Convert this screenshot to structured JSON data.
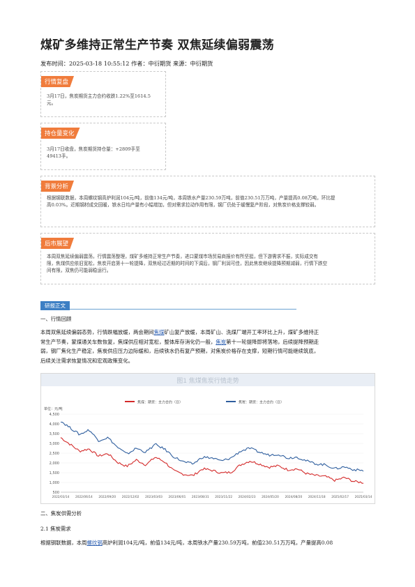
{
  "title": "煤矿多维持正常生产节奏 双焦延续偏弱震荡",
  "meta": "发布时间：2025-03-18 10:55:12 作者：中衍期货 来源：中衍期货",
  "boxes": [
    {
      "tag": "行情复盘",
      "lines": [
        "3月17日，焦炭期货主力合约收跌1.22%至1614.5",
        "元。"
      ]
    },
    {
      "tag": "持仓量变化",
      "lines": [
        "3月17日收盘，焦炭期货持仓量：+2809手至",
        "49413手。"
      ]
    },
    {
      "tag": "背景分析",
      "lines": [
        "根据钢联数据，本周螺纹钢高炉利润104元/吨，前值134元/吨，本周铁水产量230.59万吨，前值230.51万万吨，产量提高0.08万吨，环比提",
        "高0.03%。近期钢材成交回暖，铁水日均产量有小幅增加，但对需求拉动作用有限，钢厂仍处于缓慢复产阶段，对焦炭价格支撑较弱。"
      ]
    },
    {
      "tag": "后市展望",
      "lines": [
        "本周双焦延续偏弱震荡，行情震荡整理，煤矿多维持正常生产节奏，进口蒙煤市场贸易商报价有所坚挺，但下游需求不振，实际成交有",
        "限，焦煤供应依旧宽松，焦炭开启第十一轮提降，双焦经过近期的时间的下调后，钢厂利润可佳，因此焦炭继续提降预期减弱，行情下跌空",
        "间有限，双焦仍可能弱稳运行。"
      ]
    }
  ],
  "section_header": "研报正文",
  "sections": {
    "s1": "一、行情回顾",
    "p1_a": "本周双焦延续偏弱态势，行情跌幅放缓，两会期间",
    "p1_link1": "焦煤",
    "p1_b": "矿山复产放缓，本周矿山、洗煤厂端开工率环比上升，煤矿多维持正",
    "p1_c": "常生产节奏，蒙煤通关车数恢复，焦煤供应相对宽松，整体库存消化仍一般，",
    "p1_link2": "焦炭",
    "p1_d": "第十一轮提降即将落地，后续提降预期走",
    "p1_e": "弱，钢厂焦化生产稳定，焦炭供应压力边际缓和，后续铁水仍有复产预期，对焦炭价格存在支撑，短期行情可能继续筑底，",
    "p1_f": "后续关注需求恢复情况和宏观政策变化。",
    "s2": "二、焦炭供需分析",
    "s21": "2.1 焦炭需求",
    "p2_a": "根据钢联数据，本周",
    "p2_link": "螺纹钢",
    "p2_b": "高炉利润104元/吨，前值134元/吨，本周铁水产量230.59万吨，前值230.51万万吨，产量提高0.08"
  },
  "chart_data": {
    "type": "line",
    "title": "图1 焦煤焦炭行情走势",
    "ylabel": "单位：元/吨",
    "ylim": [
      500,
      4500
    ],
    "yticks": [
      500,
      1000,
      1500,
      2000,
      2500,
      3000,
      3500,
      4000,
      4500
    ],
    "x_ticks": [
      "2022/03/14",
      "2022/06/14",
      "2022/09/20",
      "2022/12/02",
      "2023/03/03",
      "2023/06/01",
      "2023/08/31",
      "2023/11/22",
      "2024/02/23",
      "2024/05/20",
      "2024/08/20",
      "2024/11/18",
      "2025/02/17",
      "2025/03/14"
    ],
    "series": [
      {
        "name": "焦煤：期货：主力合约（日）",
        "color": "#d42a2a",
        "values": [
          3300,
          2950,
          2600,
          2720,
          2350,
          2480,
          2030,
          1820,
          2150,
          1900,
          2300,
          2050,
          1580,
          1420,
          1350,
          1700,
          1620,
          1480,
          1520,
          1900,
          2100,
          1950,
          1780,
          1850,
          1650,
          1700,
          1450,
          1350,
          1300,
          1100,
          1250,
          1050,
          990
        ]
      },
      {
        "name": "焦炭：期货：主力合约（日）",
        "color": "#2e5e9e",
        "values": [
          4150,
          3800,
          3450,
          3700,
          3150,
          3300,
          2800,
          2450,
          2750,
          2550,
          2950,
          2700,
          2300,
          2050,
          1950,
          2300,
          2250,
          2100,
          2250,
          2600,
          2750,
          2550,
          2400,
          2450,
          2250,
          2300,
          2100,
          1950,
          1900,
          1700,
          1800,
          1650,
          1610
        ]
      }
    ]
  },
  "colors": {
    "accent_orange": "#f07c3c",
    "accent_blue": "#3d7fc4",
    "link": "#2a5db0"
  }
}
